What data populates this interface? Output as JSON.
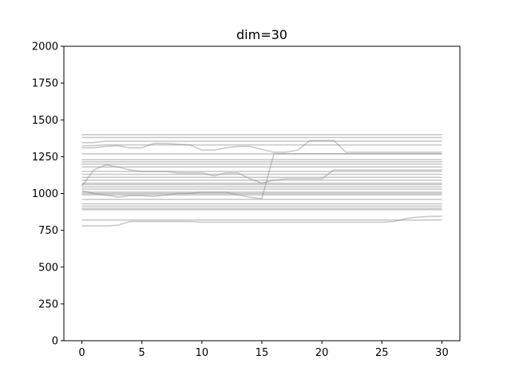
{
  "chart_data": {
    "type": "line",
    "title": "dim=30",
    "xlabel": "",
    "ylabel": "",
    "xlim": [
      -1.5,
      31.5
    ],
    "ylim": [
      0,
      2000
    ],
    "xticks": [
      0,
      5,
      10,
      15,
      20,
      25,
      30
    ],
    "yticks": [
      0,
      250,
      500,
      750,
      1000,
      1250,
      1500,
      1750,
      2000
    ],
    "grid": false,
    "legend": "none",
    "line_color": "#808080",
    "line_opacity": 0.45,
    "x": [
      0,
      1,
      2,
      3,
      4,
      5,
      6,
      7,
      8,
      9,
      10,
      11,
      12,
      13,
      14,
      15,
      16,
      17,
      18,
      19,
      20,
      21,
      22,
      23,
      24,
      25,
      26,
      27,
      28,
      29,
      30
    ],
    "series": [
      {
        "values": [
          1400,
          1400,
          1400,
          1400,
          1400,
          1400,
          1400,
          1400,
          1400,
          1400,
          1400,
          1400,
          1400,
          1400,
          1400,
          1400,
          1400,
          1400,
          1400,
          1400,
          1400,
          1400,
          1400,
          1400,
          1400,
          1400,
          1400,
          1400,
          1400,
          1400,
          1400
        ]
      },
      {
        "values": [
          1380,
          1380,
          1380,
          1380,
          1380,
          1380,
          1380,
          1380,
          1380,
          1380,
          1380,
          1380,
          1380,
          1380,
          1380,
          1380,
          1380,
          1380,
          1380,
          1380,
          1380,
          1380,
          1380,
          1380,
          1380,
          1380,
          1380,
          1380,
          1380,
          1380,
          1380
        ]
      },
      {
        "values": [
          1345,
          1345,
          1355,
          1355,
          1355,
          1355,
          1355,
          1355,
          1355,
          1355,
          1355,
          1355,
          1355,
          1355,
          1355,
          1355,
          1355,
          1355,
          1355,
          1355,
          1355,
          1355,
          1355,
          1355,
          1355,
          1355,
          1355,
          1355,
          1355,
          1355,
          1355
        ]
      },
      {
        "values": [
          1310,
          1310,
          1320,
          1325,
          1310,
          1310,
          1340,
          1340,
          1335,
          1330,
          1295,
          1295,
          1310,
          1320,
          1320,
          1300,
          1280,
          1280,
          1295,
          1360,
          1360,
          1360,
          1280,
          1280,
          1280,
          1280,
          1280,
          1280,
          1280,
          1280,
          1280
        ]
      },
      {
        "values": [
          1325,
          1325,
          1330,
          1330,
          1330,
          1330,
          1330,
          1330,
          1330,
          1330,
          1330,
          1330,
          1330,
          1330,
          1330,
          1330,
          1330,
          1330,
          1330,
          1330,
          1330,
          1330,
          1330,
          1330,
          1330,
          1330,
          1330,
          1330,
          1330,
          1330,
          1330
        ]
      },
      {
        "values": [
          1270,
          1270,
          1270,
          1270,
          1270,
          1270,
          1270,
          1270,
          1270,
          1270,
          1270,
          1270,
          1270,
          1270,
          1270,
          1270,
          1270,
          1270,
          1270,
          1270,
          1270,
          1270,
          1270,
          1270,
          1270,
          1270,
          1270,
          1270,
          1270,
          1270,
          1270
        ]
      },
      {
        "values": [
          1230,
          1230,
          1230,
          1230,
          1230,
          1230,
          1230,
          1230,
          1230,
          1230,
          1230,
          1230,
          1230,
          1230,
          1230,
          1230,
          1230,
          1230,
          1230,
          1230,
          1230,
          1230,
          1230,
          1230,
          1230,
          1230,
          1230,
          1230,
          1230,
          1230,
          1230
        ]
      },
      {
        "values": [
          1215,
          1215,
          1215,
          1215,
          1215,
          1215,
          1215,
          1215,
          1215,
          1215,
          1215,
          1215,
          1215,
          1215,
          1215,
          1215,
          1215,
          1215,
          1215,
          1215,
          1215,
          1215,
          1215,
          1215,
          1215,
          1215,
          1215,
          1215,
          1215,
          1215,
          1215
        ]
      },
      {
        "values": [
          1200,
          1200,
          1200,
          1200,
          1200,
          1200,
          1200,
          1200,
          1200,
          1200,
          1200,
          1200,
          1200,
          1200,
          1200,
          1200,
          1200,
          1200,
          1200,
          1200,
          1200,
          1200,
          1200,
          1200,
          1200,
          1200,
          1200,
          1200,
          1200,
          1200,
          1200
        ]
      },
      {
        "values": [
          1050,
          1160,
          1195,
          1180,
          1160,
          1150,
          1150,
          1150,
          1140,
          1140,
          1140,
          1120,
          1140,
          1140,
          1100,
          1070,
          1090,
          1100,
          1100,
          1100,
          1100,
          1160,
          1160,
          1160,
          1160,
          1160,
          1160,
          1160,
          1160,
          1160,
          1160
        ]
      },
      {
        "values": [
          1180,
          1180,
          1180,
          1180,
          1180,
          1180,
          1180,
          1180,
          1180,
          1180,
          1180,
          1180,
          1180,
          1180,
          1180,
          1180,
          1180,
          1180,
          1180,
          1180,
          1180,
          1180,
          1180,
          1180,
          1180,
          1180,
          1180,
          1180,
          1180,
          1180,
          1180
        ]
      },
      {
        "values": [
          1150,
          1150,
          1150,
          1150,
          1150,
          1150,
          1150,
          1150,
          1150,
          1150,
          1150,
          1150,
          1150,
          1150,
          1150,
          1150,
          1150,
          1150,
          1150,
          1150,
          1150,
          1150,
          1150,
          1150,
          1150,
          1150,
          1150,
          1150,
          1150,
          1150,
          1150
        ]
      },
      {
        "values": [
          1130,
          1130,
          1130,
          1130,
          1130,
          1130,
          1130,
          1130,
          1130,
          1130,
          1130,
          1130,
          1130,
          1130,
          1130,
          1130,
          1130,
          1130,
          1130,
          1130,
          1130,
          1130,
          1130,
          1130,
          1130,
          1130,
          1130,
          1130,
          1130,
          1130,
          1130
        ]
      },
      {
        "values": [
          1110,
          1110,
          1110,
          1110,
          1110,
          1110,
          1110,
          1110,
          1110,
          1110,
          1110,
          1110,
          1110,
          1110,
          1110,
          1110,
          1110,
          1110,
          1110,
          1110,
          1110,
          1110,
          1110,
          1110,
          1110,
          1110,
          1110,
          1110,
          1110,
          1110,
          1110
        ]
      },
      {
        "values": [
          1090,
          1090,
          1090,
          1090,
          1090,
          1090,
          1090,
          1090,
          1090,
          1090,
          1090,
          1090,
          1090,
          1090,
          1090,
          1090,
          1090,
          1090,
          1090,
          1090,
          1090,
          1090,
          1090,
          1090,
          1090,
          1090,
          1090,
          1090,
          1090,
          1090,
          1090
        ]
      },
      {
        "values": [
          1070,
          1070,
          1070,
          1070,
          1070,
          1070,
          1070,
          1070,
          1070,
          1070,
          1070,
          1070,
          1070,
          1070,
          1070,
          1070,
          1070,
          1070,
          1070,
          1070,
          1070,
          1070,
          1070,
          1070,
          1070,
          1070,
          1070,
          1070,
          1070,
          1070,
          1070
        ]
      },
      {
        "values": [
          1060,
          1060,
          1060,
          1060,
          1060,
          1060,
          1060,
          1060,
          1060,
          1060,
          1060,
          1060,
          1060,
          1060,
          1060,
          1060,
          1060,
          1060,
          1060,
          1060,
          1060,
          1060,
          1060,
          1060,
          1060,
          1060,
          1060,
          1060,
          1060,
          1060,
          1060
        ]
      },
      {
        "values": [
          1045,
          1045,
          1045,
          1045,
          1045,
          1045,
          1045,
          1045,
          1045,
          1045,
          1045,
          1045,
          1045,
          1045,
          1045,
          1045,
          1045,
          1045,
          1045,
          1045,
          1045,
          1045,
          1045,
          1045,
          1045,
          1045,
          1045,
          1045,
          1045,
          1045,
          1045
        ]
      },
      {
        "values": [
          1030,
          1030,
          1030,
          1030,
          1030,
          1030,
          1030,
          1030,
          1030,
          1030,
          1030,
          1030,
          1030,
          1030,
          1030,
          1030,
          1030,
          1030,
          1030,
          1030,
          1030,
          1030,
          1030,
          1030,
          1030,
          1030,
          1030,
          1030,
          1030,
          1030,
          1030
        ]
      },
      {
        "values": [
          1000,
          1000,
          1000,
          1000,
          1000,
          1000,
          1000,
          1000,
          1000,
          1000,
          1000,
          1000,
          1000,
          1000,
          1000,
          1000,
          1000,
          1000,
          1000,
          1000,
          1000,
          1000,
          1000,
          1000,
          1000,
          1000,
          1000,
          1000,
          1000,
          1000,
          1000
        ]
      },
      {
        "values": [
          990,
          990,
          990,
          990,
          990,
          990,
          990,
          990,
          990,
          990,
          990,
          990,
          990,
          990,
          990,
          990,
          990,
          990,
          990,
          990,
          990,
          990,
          990,
          990,
          990,
          990,
          990,
          990,
          990,
          990,
          990
        ]
      },
      {
        "values": [
          1020,
          1000,
          990,
          975,
          985,
          985,
          980,
          990,
          1000,
          1000,
          1010,
          1010,
          1010,
          990,
          975,
          965,
          1270,
          1270,
          1270,
          1270,
          1270,
          1270,
          1270,
          1270,
          1270,
          1270,
          1270,
          1270,
          1270,
          1270,
          1270
        ]
      },
      {
        "values": [
          1010,
          1010,
          1010,
          1010,
          1010,
          1010,
          1010,
          1010,
          1010,
          1010,
          1010,
          1010,
          1010,
          1010,
          1010,
          1010,
          1010,
          1010,
          1010,
          1010,
          1010,
          1010,
          1010,
          1010,
          1010,
          1010,
          1010,
          1010,
          1010,
          1010,
          1010
        ]
      },
      {
        "values": [
          960,
          960,
          960,
          960,
          960,
          960,
          960,
          960,
          960,
          960,
          960,
          960,
          960,
          960,
          960,
          960,
          960,
          960,
          960,
          960,
          960,
          960,
          960,
          960,
          960,
          960,
          960,
          960,
          960,
          960,
          960
        ]
      },
      {
        "values": [
          930,
          930,
          930,
          930,
          930,
          930,
          930,
          930,
          930,
          930,
          930,
          930,
          930,
          930,
          930,
          930,
          930,
          930,
          930,
          930,
          930,
          930,
          930,
          930,
          930,
          930,
          930,
          930,
          930,
          930,
          930
        ]
      },
      {
        "values": [
          915,
          915,
          915,
          915,
          915,
          915,
          915,
          915,
          915,
          915,
          915,
          915,
          915,
          915,
          915,
          915,
          915,
          915,
          915,
          915,
          915,
          915,
          915,
          915,
          915,
          915,
          915,
          915,
          915,
          915,
          915
        ]
      },
      {
        "values": [
          900,
          900,
          900,
          900,
          900,
          900,
          900,
          900,
          900,
          900,
          900,
          900,
          900,
          900,
          900,
          900,
          900,
          900,
          900,
          900,
          900,
          900,
          900,
          900,
          900,
          900,
          900,
          900,
          900,
          900,
          900
        ]
      },
      {
        "values": [
          890,
          890,
          890,
          890,
          890,
          890,
          890,
          890,
          890,
          890,
          890,
          890,
          890,
          890,
          890,
          890,
          890,
          890,
          890,
          890,
          890,
          890,
          890,
          890,
          890,
          890,
          890,
          890,
          890,
          890,
          890
        ]
      },
      {
        "values": [
          820,
          820,
          820,
          820,
          820,
          820,
          820,
          820,
          820,
          820,
          820,
          820,
          820,
          820,
          820,
          820,
          820,
          820,
          820,
          820,
          820,
          820,
          820,
          820,
          820,
          820,
          820,
          820,
          820,
          820,
          820
        ]
      },
      {
        "values": [
          780,
          780,
          780,
          785,
          810,
          810,
          810,
          810,
          810,
          810,
          805,
          805,
          805,
          805,
          805,
          805,
          805,
          805,
          805,
          805,
          805,
          805,
          805,
          805,
          805,
          805,
          810,
          830,
          840,
          845,
          845
        ]
      }
    ]
  }
}
